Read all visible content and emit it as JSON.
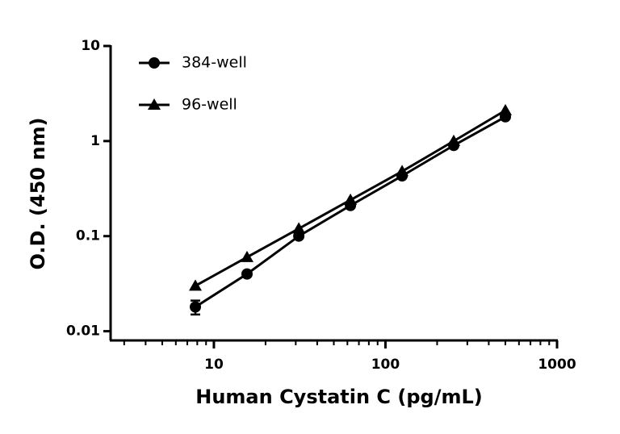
{
  "chart_data": {
    "type": "line",
    "xlabel": "Human Cystatin C (pg/mL)",
    "ylabel": "O.D. (450 nm)",
    "x": [
      7.8,
      15.6,
      31.25,
      62.5,
      125,
      250,
      500
    ],
    "series": [
      {
        "name": "384-well",
        "color": "#000000",
        "marker": "circle",
        "values": [
          0.018,
          0.04,
          0.1,
          0.21,
          0.43,
          0.9,
          1.8
        ],
        "errors": [
          0.003,
          0,
          0,
          0,
          0,
          0,
          0
        ]
      },
      {
        "name": "96-well",
        "color": "#000000",
        "marker": "triangle",
        "values": [
          0.03,
          0.06,
          0.12,
          0.24,
          0.48,
          1.0,
          2.1
        ]
      }
    ],
    "xscale": "log",
    "yscale": "log",
    "xlim": [
      2.5,
      1000
    ],
    "ylim": [
      0.008,
      10
    ],
    "xticks": [
      10,
      100,
      1000
    ],
    "yticks": [
      0.01,
      0.1,
      1,
      10
    ],
    "legend": "upper left",
    "grid": false
  }
}
